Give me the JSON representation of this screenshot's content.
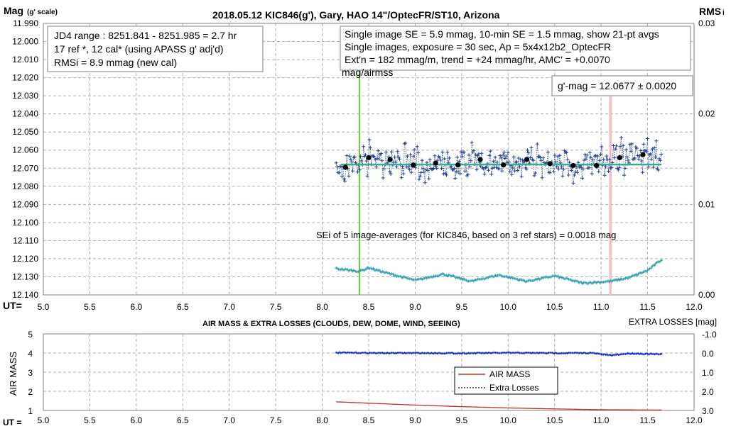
{
  "top": {
    "title": "2018.05.12  KIC846(g'),  Gary, HAO 14\"/OptecFR/ST10,  Arizona",
    "ylabel_main": "Mag",
    "ylabel_unit": "(g' scale)",
    "ylabel_right": "RMS",
    "ylabel_right_sub": "i",
    "ut_label": "UT=",
    "info_left": [
      "JD4 range : 8251.841 - 8251.985 =  2.7  hr",
      "17 ref *, 12 cal* (using APASS g' adj'd)",
      "RMSi = 8.9 mmag (new cal)"
    ],
    "info_right": [
      "Single image SE = 5.9 mmag, 10-min SE = 1.5 mmag, show  21-pt avgs",
      "Single images, exposure = 30 sec, Ap = 5x4x12b2_OptecFR",
      "Ext'n = 182 mmag/m, trend =  +24 mmag/hr, AMC' = +0.0070",
      "mag/airmss"
    ],
    "gmag_box": "g'-mag = 12.0677 ± 0.0020",
    "sei_note": "SEi of 5 image-averages (for KIC846, based on 3 ref stars) = 0.0018  mag",
    "y_ticks": [
      "11.990",
      "12.000",
      "12.010",
      "12.020",
      "12.030",
      "12.040",
      "12.050",
      "12.060",
      "12.070",
      "12.080",
      "12.090",
      "12.100",
      "12.110",
      "12.120",
      "12.130",
      "12.140"
    ],
    "x_ticks": [
      "5.0",
      "5.5",
      "6.0",
      "6.5",
      "7.0",
      "7.5",
      "8.0",
      "8.5",
      "9.0",
      "9.5",
      "10.0",
      "10.5",
      "11.0",
      "11.5",
      "12.0"
    ],
    "rms_ticks": [
      "0.03",
      "0.02",
      "0.01",
      "0.00"
    ],
    "colors": {
      "single": "#1f3f8f",
      "avg": "#000000",
      "trend": "#3aaa8a",
      "rms": "#3aa0b0",
      "green_line": "#66cc33",
      "pink_line": "#f4b8bc",
      "grid": "#b0b0b0"
    }
  },
  "bottom": {
    "title": "AIR MASS & EXTRA LOSSES (CLOUDS, DEW, DOME, WIND, SEEING)",
    "ylabel": "AIR MASS",
    "ylabel_right": "EXTRA LOSSES [mag]",
    "ut_label": "UT =",
    "y_ticks": [
      "5",
      "4",
      "3",
      "2",
      "1"
    ],
    "right_ticks": [
      "-1.0",
      "0.0",
      "1.0",
      "2.0",
      "3.0"
    ],
    "x_ticks": [
      "5.0",
      "5.5",
      "6.0",
      "6.5",
      "7.0",
      "7.5",
      "8.0",
      "8.5",
      "9.0",
      "9.5",
      "10.0",
      "10.5",
      "11.0",
      "11.5",
      "12.0"
    ],
    "legend": [
      "AIR MASS",
      "Extra Losses"
    ],
    "colors": {
      "airmass": "#c0302c",
      "extra": "#1a2fc0"
    }
  },
  "chart_data": [
    {
      "type": "scatter",
      "title": "2018.05.12  KIC846(g'),  Gary, HAO 14\"/OptecFR/ST10,  Arizona",
      "xlabel": "UT=",
      "ylabel": "Mag (g' scale)",
      "xlim": [
        5.0,
        12.0
      ],
      "ylim": [
        12.14,
        11.99
      ],
      "y_inverted": true,
      "y2label": "RMS i",
      "y2lim": [
        0.0,
        0.03
      ],
      "grid": true,
      "series": [
        {
          "name": "21-pt avgs",
          "x": [
            8.25,
            8.5,
            8.73,
            8.98,
            9.22,
            9.46,
            9.7,
            9.95,
            10.2,
            10.45,
            10.7,
            10.95,
            11.2,
            11.45
          ],
          "y": [
            12.0695,
            12.0642,
            12.0652,
            12.0682,
            12.0672,
            12.0682,
            12.0652,
            12.0682,
            12.0652,
            12.0675,
            12.0685,
            12.0685,
            12.0642,
            12.0625
          ]
        },
        {
          "name": "trend",
          "x": [
            8.2,
            11.65
          ],
          "y": [
            12.068,
            12.068
          ]
        },
        {
          "name": "RMS i",
          "x": [
            8.15,
            8.4,
            8.5,
            8.7,
            9.0,
            9.3,
            9.6,
            9.9,
            10.2,
            10.5,
            10.8,
            11.1,
            11.3,
            11.5,
            11.65
          ],
          "y": [
            0.0029,
            0.0026,
            0.003,
            0.0024,
            0.0016,
            0.0023,
            0.0015,
            0.0022,
            0.0015,
            0.0021,
            0.0013,
            0.0015,
            0.0019,
            0.0027,
            0.0039
          ]
        }
      ],
      "markers": [
        {
          "x": 8.4,
          "color": "green"
        },
        {
          "x": 11.1,
          "color": "pink"
        }
      ]
    },
    {
      "type": "line",
      "title": "AIR MASS & EXTRA LOSSES (CLOUDS, DEW, DOME, WIND, SEEING)",
      "xlabel": "UT =",
      "ylabel": "AIR MASS",
      "xlim": [
        5.0,
        12.0
      ],
      "ylim": [
        1,
        5
      ],
      "y2label": "EXTRA LOSSES [mag]",
      "y2lim": [
        -1.0,
        3.0
      ],
      "legend_position": "center-right",
      "series": [
        {
          "name": "AIR MASS",
          "x": [
            8.15,
            8.5,
            9.0,
            9.5,
            10.0,
            10.5,
            11.0,
            11.65
          ],
          "y": [
            1.45,
            1.38,
            1.28,
            1.2,
            1.13,
            1.08,
            1.04,
            1.02
          ]
        },
        {
          "name": "Extra Losses",
          "x": [
            8.15,
            8.6,
            9.0,
            9.5,
            10.0,
            10.5,
            10.9,
            11.1,
            11.3,
            11.65
          ],
          "y": [
            -0.02,
            0.0,
            0.0,
            0.01,
            -0.01,
            0.0,
            0.0,
            0.12,
            0.02,
            0.07
          ]
        }
      ]
    }
  ]
}
